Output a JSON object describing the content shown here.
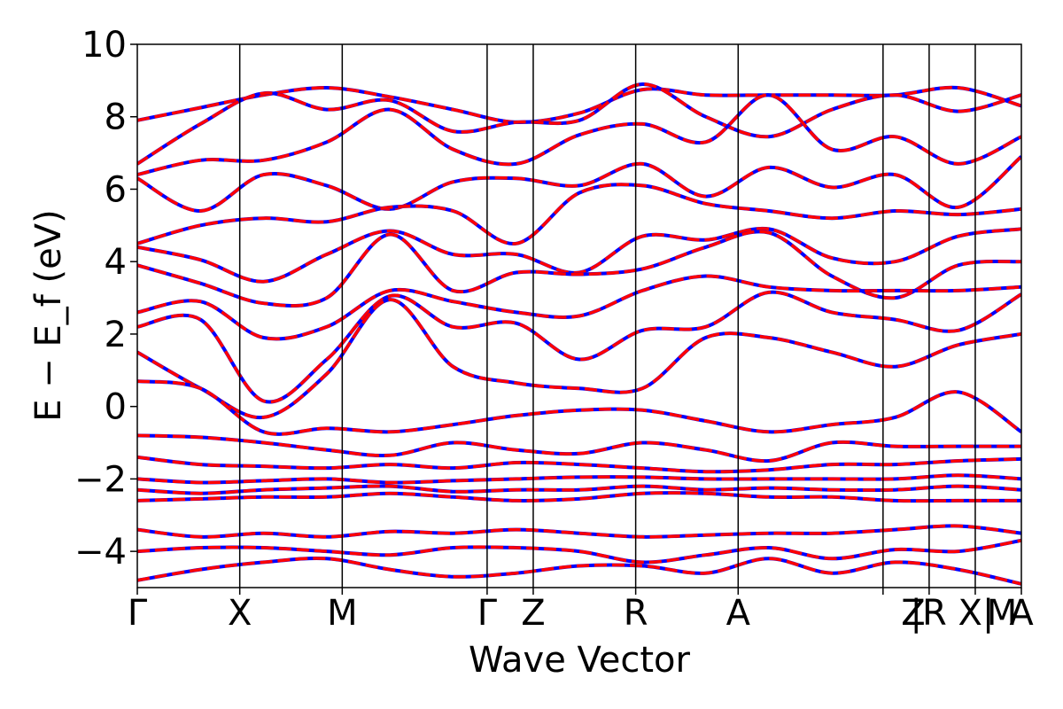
{
  "chart_data": {
    "type": "line",
    "xlabel": "Wave Vector",
    "ylabel": "E − E_f (eV)",
    "ylim": [
      -5,
      10
    ],
    "yticks": [
      -4,
      -2,
      0,
      2,
      4,
      6,
      8,
      10
    ],
    "yticklabels": [
      "−4",
      "−2",
      "0",
      "2",
      "4",
      "6",
      "8",
      "10"
    ],
    "kpath": {
      "segment_lengths": [
        1.0,
        1.0,
        1.414,
        0.45,
        1.0,
        1.0,
        1.414,
        0.45,
        0.45,
        0.45
      ],
      "labels": [
        "Γ",
        "X",
        "M",
        "Γ",
        "Z",
        "R",
        "A",
        "Z |R",
        "X| M",
        "A"
      ],
      "label_display": [
        "Γ",
        "X",
        "M",
        "Γ",
        "Z",
        "R",
        "A",
        "Z",
        "|R X|",
        "M",
        "A"
      ]
    },
    "series": [
      {
        "name": "",
        "color": "#0000ff",
        "style": "solid"
      },
      {
        "name": "",
        "color": "#ff0000",
        "style": "dashed"
      }
    ],
    "bands": [
      [
        7.9,
        8.25,
        8.6,
        8.8,
        8.55,
        8.2,
        7.85,
        8.1,
        8.75,
        8.6,
        8.6,
        8.6,
        8.6,
        8.8,
        8.3
      ],
      [
        6.7,
        7.8,
        8.65,
        8.2,
        8.45,
        7.6,
        7.85,
        7.9,
        8.9,
        8.0,
        7.45,
        8.2,
        8.6,
        8.15,
        8.6
      ],
      [
        6.4,
        6.8,
        6.8,
        7.3,
        8.2,
        7.1,
        6.7,
        7.5,
        7.8,
        7.3,
        8.6,
        7.1,
        7.45,
        6.7,
        7.45
      ],
      [
        6.3,
        5.4,
        6.4,
        6.1,
        5.45,
        6.2,
        6.3,
        6.1,
        6.7,
        5.8,
        6.6,
        6.05,
        6.4,
        5.5,
        6.9
      ],
      [
        4.5,
        5.0,
        5.2,
        5.1,
        5.5,
        5.4,
        4.5,
        5.9,
        6.1,
        5.6,
        5.4,
        5.2,
        5.4,
        5.3,
        5.45
      ],
      [
        4.4,
        4.05,
        3.45,
        4.2,
        4.85,
        4.2,
        4.2,
        3.7,
        4.7,
        4.6,
        4.9,
        4.1,
        4.0,
        4.7,
        4.9
      ],
      [
        3.9,
        3.4,
        2.85,
        3.0,
        4.75,
        3.2,
        3.7,
        3.65,
        3.8,
        4.4,
        4.8,
        3.6,
        3.0,
        3.9,
        4.0
      ],
      [
        2.6,
        2.9,
        1.9,
        2.2,
        3.2,
        2.9,
        2.6,
        2.5,
        3.2,
        3.6,
        3.3,
        3.2,
        3.2,
        3.2,
        3.3
      ],
      [
        2.2,
        2.4,
        0.15,
        1.3,
        3.05,
        2.2,
        2.3,
        1.3,
        2.1,
        2.2,
        3.15,
        2.6,
        2.4,
        2.1,
        3.1
      ],
      [
        1.5,
        0.5,
        -0.3,
        0.9,
        2.95,
        1.1,
        0.65,
        0.5,
        0.5,
        1.9,
        1.9,
        1.5,
        1.1,
        1.7,
        2.0
      ],
      [
        0.7,
        0.5,
        -0.7,
        -0.6,
        -0.7,
        -0.5,
        -0.25,
        -0.1,
        -0.1,
        -0.4,
        -0.7,
        -0.5,
        -0.3,
        0.4,
        -0.7
      ],
      [
        -0.8,
        -0.85,
        -1.0,
        -1.2,
        -1.35,
        -1.0,
        -1.2,
        -1.3,
        -1.0,
        -1.2,
        -1.5,
        -1.0,
        -1.1,
        -1.1,
        -1.1
      ],
      [
        -1.4,
        -1.6,
        -1.65,
        -1.7,
        -1.6,
        -1.7,
        -1.55,
        -1.6,
        -1.7,
        -1.8,
        -1.75,
        -1.6,
        -1.6,
        -1.5,
        -1.45
      ],
      [
        -2.0,
        -2.1,
        -2.05,
        -2.0,
        -2.1,
        -2.05,
        -2.0,
        -1.95,
        -1.95,
        -2.0,
        -2.0,
        -2.0,
        -2.0,
        -1.9,
        -2.0
      ],
      [
        -2.3,
        -2.4,
        -2.3,
        -2.25,
        -2.2,
        -2.35,
        -2.3,
        -2.3,
        -2.2,
        -2.3,
        -2.25,
        -2.3,
        -2.3,
        -2.2,
        -2.3
      ],
      [
        -2.6,
        -2.55,
        -2.5,
        -2.5,
        -2.4,
        -2.5,
        -2.6,
        -2.55,
        -2.4,
        -2.4,
        -2.5,
        -2.5,
        -2.6,
        -2.6,
        -2.6
      ],
      [
        -3.4,
        -3.6,
        -3.5,
        -3.6,
        -3.45,
        -3.5,
        -3.4,
        -3.5,
        -3.6,
        -3.55,
        -3.5,
        -3.5,
        -3.4,
        -3.3,
        -3.5
      ],
      [
        -4.0,
        -3.9,
        -3.9,
        -4.0,
        -4.1,
        -3.9,
        -3.9,
        -4.0,
        -4.3,
        -4.1,
        -3.9,
        -4.2,
        -3.95,
        -4.0,
        -3.7
      ],
      [
        -4.8,
        -4.5,
        -4.3,
        -4.2,
        -4.5,
        -4.7,
        -4.6,
        -4.4,
        -4.4,
        -4.6,
        -4.2,
        -4.6,
        -4.3,
        -4.5,
        -4.9
      ]
    ]
  }
}
